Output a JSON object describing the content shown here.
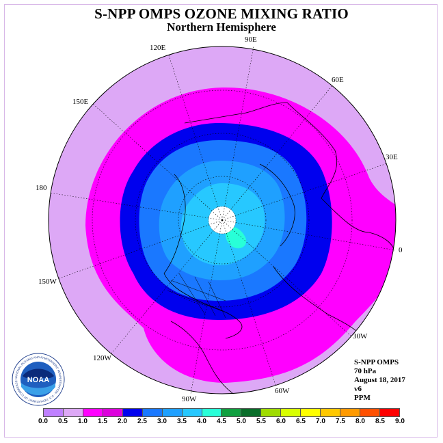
{
  "title": "S-NPP OMPS OZONE MIXING RATIO",
  "subtitle": "Northern Hemisphere",
  "longitude_labels": {
    "lon_90e": "90E",
    "lon_120e": "120E",
    "lon_60e": "60E",
    "lon_150e": "150E",
    "lon_30e": "30E",
    "lon_180": "180",
    "lon_0": "0",
    "lon_150w": "150W",
    "lon_30w": "30W",
    "lon_120w": "120W",
    "lon_60w": "60W",
    "lon_90w": "90W"
  },
  "info": {
    "instrument": "S-NPP OMPS",
    "level": "70 hPa",
    "date": "August 18, 2017",
    "version": "v6",
    "units": "PPM"
  },
  "logo": {
    "text": "NOAA",
    "ring_text": "NATIONAL OCEANIC AND ATMOSPHERIC ADMINISTRATION · U.S. DEPARTMENT OF COMMERCE"
  },
  "legend": {
    "ticks": [
      "0.0",
      "0.5",
      "1.0",
      "1.5",
      "2.0",
      "2.5",
      "3.0",
      "3.5",
      "4.0",
      "4.5",
      "5.0",
      "5.5",
      "6.0",
      "6.5",
      "7.0",
      "7.5",
      "8.0",
      "8.5",
      "9.0"
    ],
    "colors": [
      "#bf80ff",
      "#dda8f6",
      "#ff00ff",
      "#dd00dd",
      "#0000ee",
      "#1a78ff",
      "#1fa0ff",
      "#27c8ff",
      "#28ffd8",
      "#10a040",
      "#0a6e2a",
      "#9fdc00",
      "#d8ff00",
      "#ffff00",
      "#ffc800",
      "#ff9a00",
      "#ff5000",
      "#ff0000",
      "#8b5a3c"
    ]
  },
  "map_fields": {
    "outer_disk": "#dda8f6",
    "band_1_0": "#ff00ff",
    "band_1_5": "#0000ee",
    "band_2_0": "#1a78ff",
    "band_2_5": "#1fa0ff",
    "band_3_0": "#27c8ff",
    "band_3_5": "#28ffd8",
    "pole_gap": "#ffffff"
  }
}
